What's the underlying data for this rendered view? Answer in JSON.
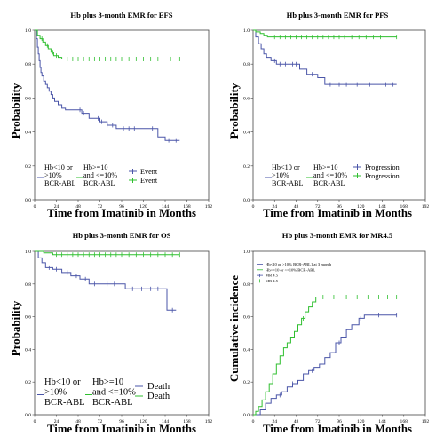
{
  "chart_data": [
    {
      "type": "line",
      "title": "Hb plus 3-month EMR for EFS",
      "xlabel": "Time from Imatinib in Months",
      "ylabel": "Probability",
      "xlim": [
        0,
        192
      ],
      "ylim": [
        0,
        1.0
      ],
      "xticks": [
        "0",
        "24",
        "48",
        "72",
        "96",
        "120",
        "144",
        "168",
        "192"
      ],
      "yticks": [
        "0.0",
        "0.2",
        "0.4",
        "0.6",
        "0.8",
        "1.0"
      ],
      "grid": false,
      "legend_position": "bottom",
      "legend_title": [
        "Hb<10 or >10% BCR-ABL",
        "Hb>=10 and <=10% BCR-ABL"
      ],
      "series": [
        {
          "name": "Hb<10 or >10% BCR-ABL",
          "color": "#4a55a8",
          "legend_label": "Event",
          "x": [
            0,
            2,
            3,
            4,
            5,
            6,
            7,
            8,
            10,
            12,
            14,
            16,
            18,
            20,
            22,
            26,
            30,
            34,
            40,
            46,
            52,
            60,
            72,
            80,
            90,
            100,
            120,
            136,
            144,
            160
          ],
          "y": [
            1.0,
            0.95,
            0.9,
            0.86,
            0.82,
            0.78,
            0.75,
            0.73,
            0.7,
            0.68,
            0.66,
            0.64,
            0.62,
            0.6,
            0.58,
            0.56,
            0.54,
            0.53,
            0.53,
            0.53,
            0.51,
            0.48,
            0.46,
            0.44,
            0.42,
            0.42,
            0.42,
            0.37,
            0.35,
            0.35
          ],
          "censor_x": [
            50,
            54,
            70,
            74,
            80,
            86,
            98,
            104,
            110,
            130,
            148,
            156
          ]
        },
        {
          "name": "Hb>=10 and <=10% BCR-ABL",
          "color": "#2fbf2f",
          "legend_label": "Event",
          "x": [
            0,
            3,
            6,
            9,
            12,
            15,
            18,
            21,
            26,
            30,
            34,
            160
          ],
          "y": [
            1.0,
            0.97,
            0.95,
            0.93,
            0.91,
            0.89,
            0.87,
            0.85,
            0.84,
            0.83,
            0.83,
            0.83
          ],
          "censor_x": [
            8,
            14,
            20,
            24,
            36,
            42,
            48,
            54,
            60,
            66,
            72,
            78,
            84,
            90,
            96,
            104,
            112,
            120,
            128,
            136,
            150,
            160
          ]
        }
      ]
    },
    {
      "type": "line",
      "title": "Hb plus 3-month EMR for PFS",
      "xlabel": "Time from Imatinib in Months",
      "ylabel": "Probability",
      "xlim": [
        0,
        192
      ],
      "ylim": [
        0,
        1.0
      ],
      "xticks": [
        "0",
        "24",
        "48",
        "72",
        "96",
        "120",
        "144",
        "168",
        "192"
      ],
      "yticks": [
        "0.0",
        "0.2",
        "0.4",
        "0.6",
        "0.8",
        "1.0"
      ],
      "grid": false,
      "legend_position": "bottom",
      "legend_title": [
        "Hb<10 or >10% BCR-ABL",
        "Hb>=10 and <=10% BCR-ABL"
      ],
      "series": [
        {
          "name": "Hb<10 or >10% BCR-ABL",
          "color": "#4a55a8",
          "legend_label": "Progression",
          "x": [
            0,
            3,
            6,
            9,
            12,
            15,
            20,
            26,
            40,
            52,
            60,
            72,
            80,
            160
          ],
          "y": [
            1.0,
            0.96,
            0.92,
            0.89,
            0.86,
            0.84,
            0.82,
            0.8,
            0.8,
            0.77,
            0.74,
            0.72,
            0.68,
            0.68
          ],
          "censor_x": [
            24,
            30,
            36,
            44,
            48,
            66,
            86,
            96,
            104,
            116,
            130,
            148,
            156
          ]
        },
        {
          "name": "Hb>=10 and <=10% BCR-ABL",
          "color": "#2fbf2f",
          "legend_label": "Progression",
          "x": [
            0,
            3,
            8,
            12,
            16,
            20,
            160
          ],
          "y": [
            1.0,
            0.99,
            0.98,
            0.97,
            0.96,
            0.96,
            0.96
          ],
          "censor_x": [
            24,
            30,
            36,
            42,
            48,
            54,
            60,
            66,
            72,
            78,
            84,
            90,
            96,
            102,
            110,
            118,
            126,
            134,
            142,
            160
          ]
        }
      ]
    },
    {
      "type": "line",
      "title": "Hb plus 3-month EMR for OS",
      "xlabel": "Time from Imatinib in Months",
      "ylabel": "Probability",
      "xlim": [
        0,
        192
      ],
      "ylim": [
        0,
        1.0
      ],
      "xticks": [
        "0",
        "24",
        "48",
        "72",
        "96",
        "120",
        "144",
        "168",
        "192"
      ],
      "yticks": [
        "0.0",
        "0.2",
        "0.4",
        "0.6",
        "0.8",
        "1.0"
      ],
      "grid": false,
      "legend_position": "bottom",
      "legend_title": [
        "Hb<10 or >10% BCR-ABL",
        "Hb>=10 and <=10% BCR-ABL"
      ],
      "series": [
        {
          "name": "Hb<10 or >10% BCR-ABL",
          "color": "#4a55a8",
          "legend_label": "Death",
          "x": [
            0,
            4,
            8,
            12,
            20,
            30,
            40,
            50,
            60,
            72,
            92,
            100,
            140,
            146,
            156
          ],
          "y": [
            1.0,
            0.96,
            0.93,
            0.9,
            0.89,
            0.87,
            0.85,
            0.83,
            0.8,
            0.8,
            0.8,
            0.77,
            0.77,
            0.64,
            0.64
          ],
          "censor_x": [
            16,
            24,
            36,
            46,
            56,
            66,
            80,
            88,
            108,
            118,
            128,
            136,
            152
          ]
        },
        {
          "name": "Hb>=10 and <=10% BCR-ABL",
          "color": "#2fbf2f",
          "legend_label": "Death",
          "x": [
            0,
            10,
            20,
            160
          ],
          "y": [
            1.0,
            0.99,
            0.98,
            0.98
          ],
          "censor_x": [
            24,
            30,
            36,
            42,
            48,
            54,
            60,
            66,
            72,
            78,
            84,
            90,
            96,
            104,
            112,
            120,
            128,
            136,
            144,
            152,
            160
          ]
        }
      ]
    },
    {
      "type": "line",
      "title": "Hb plus 3-month EMR for MR4.5",
      "xlabel": "Time from Imatinib in Months",
      "ylabel": "Cumulative incidence",
      "xlim": [
        0,
        192
      ],
      "ylim": [
        0,
        1.0
      ],
      "xticks": [
        "0",
        "24",
        "48",
        "72",
        "96",
        "120",
        "144",
        "168",
        "192"
      ],
      "yticks": [
        "0.0",
        "0.2",
        "0.4",
        "0.6",
        "0.8",
        "1.0"
      ],
      "grid": false,
      "legend_position": "top-left",
      "legend_entries": [
        "Hb<10 or >10% BCR-ABL1 at 3 month",
        "Hb>=10 or <=10% BCR-ABL",
        "MR 4.5",
        "MR 4.5"
      ],
      "series": [
        {
          "name": "Hb<10 or >10% BCR-ABL1 at 3 month",
          "color": "#4a55a8",
          "x": [
            0,
            8,
            14,
            20,
            26,
            32,
            38,
            44,
            50,
            56,
            62,
            68,
            74,
            80,
            86,
            92,
            98,
            104,
            110,
            118,
            124,
            160
          ],
          "y": [
            0.0,
            0.03,
            0.07,
            0.1,
            0.12,
            0.14,
            0.17,
            0.19,
            0.21,
            0.25,
            0.27,
            0.29,
            0.31,
            0.35,
            0.38,
            0.44,
            0.47,
            0.52,
            0.55,
            0.59,
            0.61,
            0.61
          ],
          "censor_x": [
            30,
            44,
            66,
            96,
            120,
            140,
            160
          ]
        },
        {
          "name": "Hb>=10 or <=10% BCR-ABL",
          "color": "#2fbf2f",
          "x": [
            0,
            3,
            6,
            10,
            14,
            18,
            22,
            26,
            30,
            34,
            38,
            42,
            46,
            50,
            54,
            58,
            62,
            66,
            70,
            74,
            160
          ],
          "y": [
            0.0,
            0.02,
            0.05,
            0.09,
            0.14,
            0.19,
            0.25,
            0.31,
            0.36,
            0.41,
            0.44,
            0.47,
            0.51,
            0.55,
            0.59,
            0.63,
            0.66,
            0.69,
            0.72,
            0.72,
            0.72
          ],
          "censor_x": [
            40,
            56,
            78,
            90,
            104,
            116,
            128,
            140,
            150,
            160
          ]
        }
      ]
    }
  ]
}
